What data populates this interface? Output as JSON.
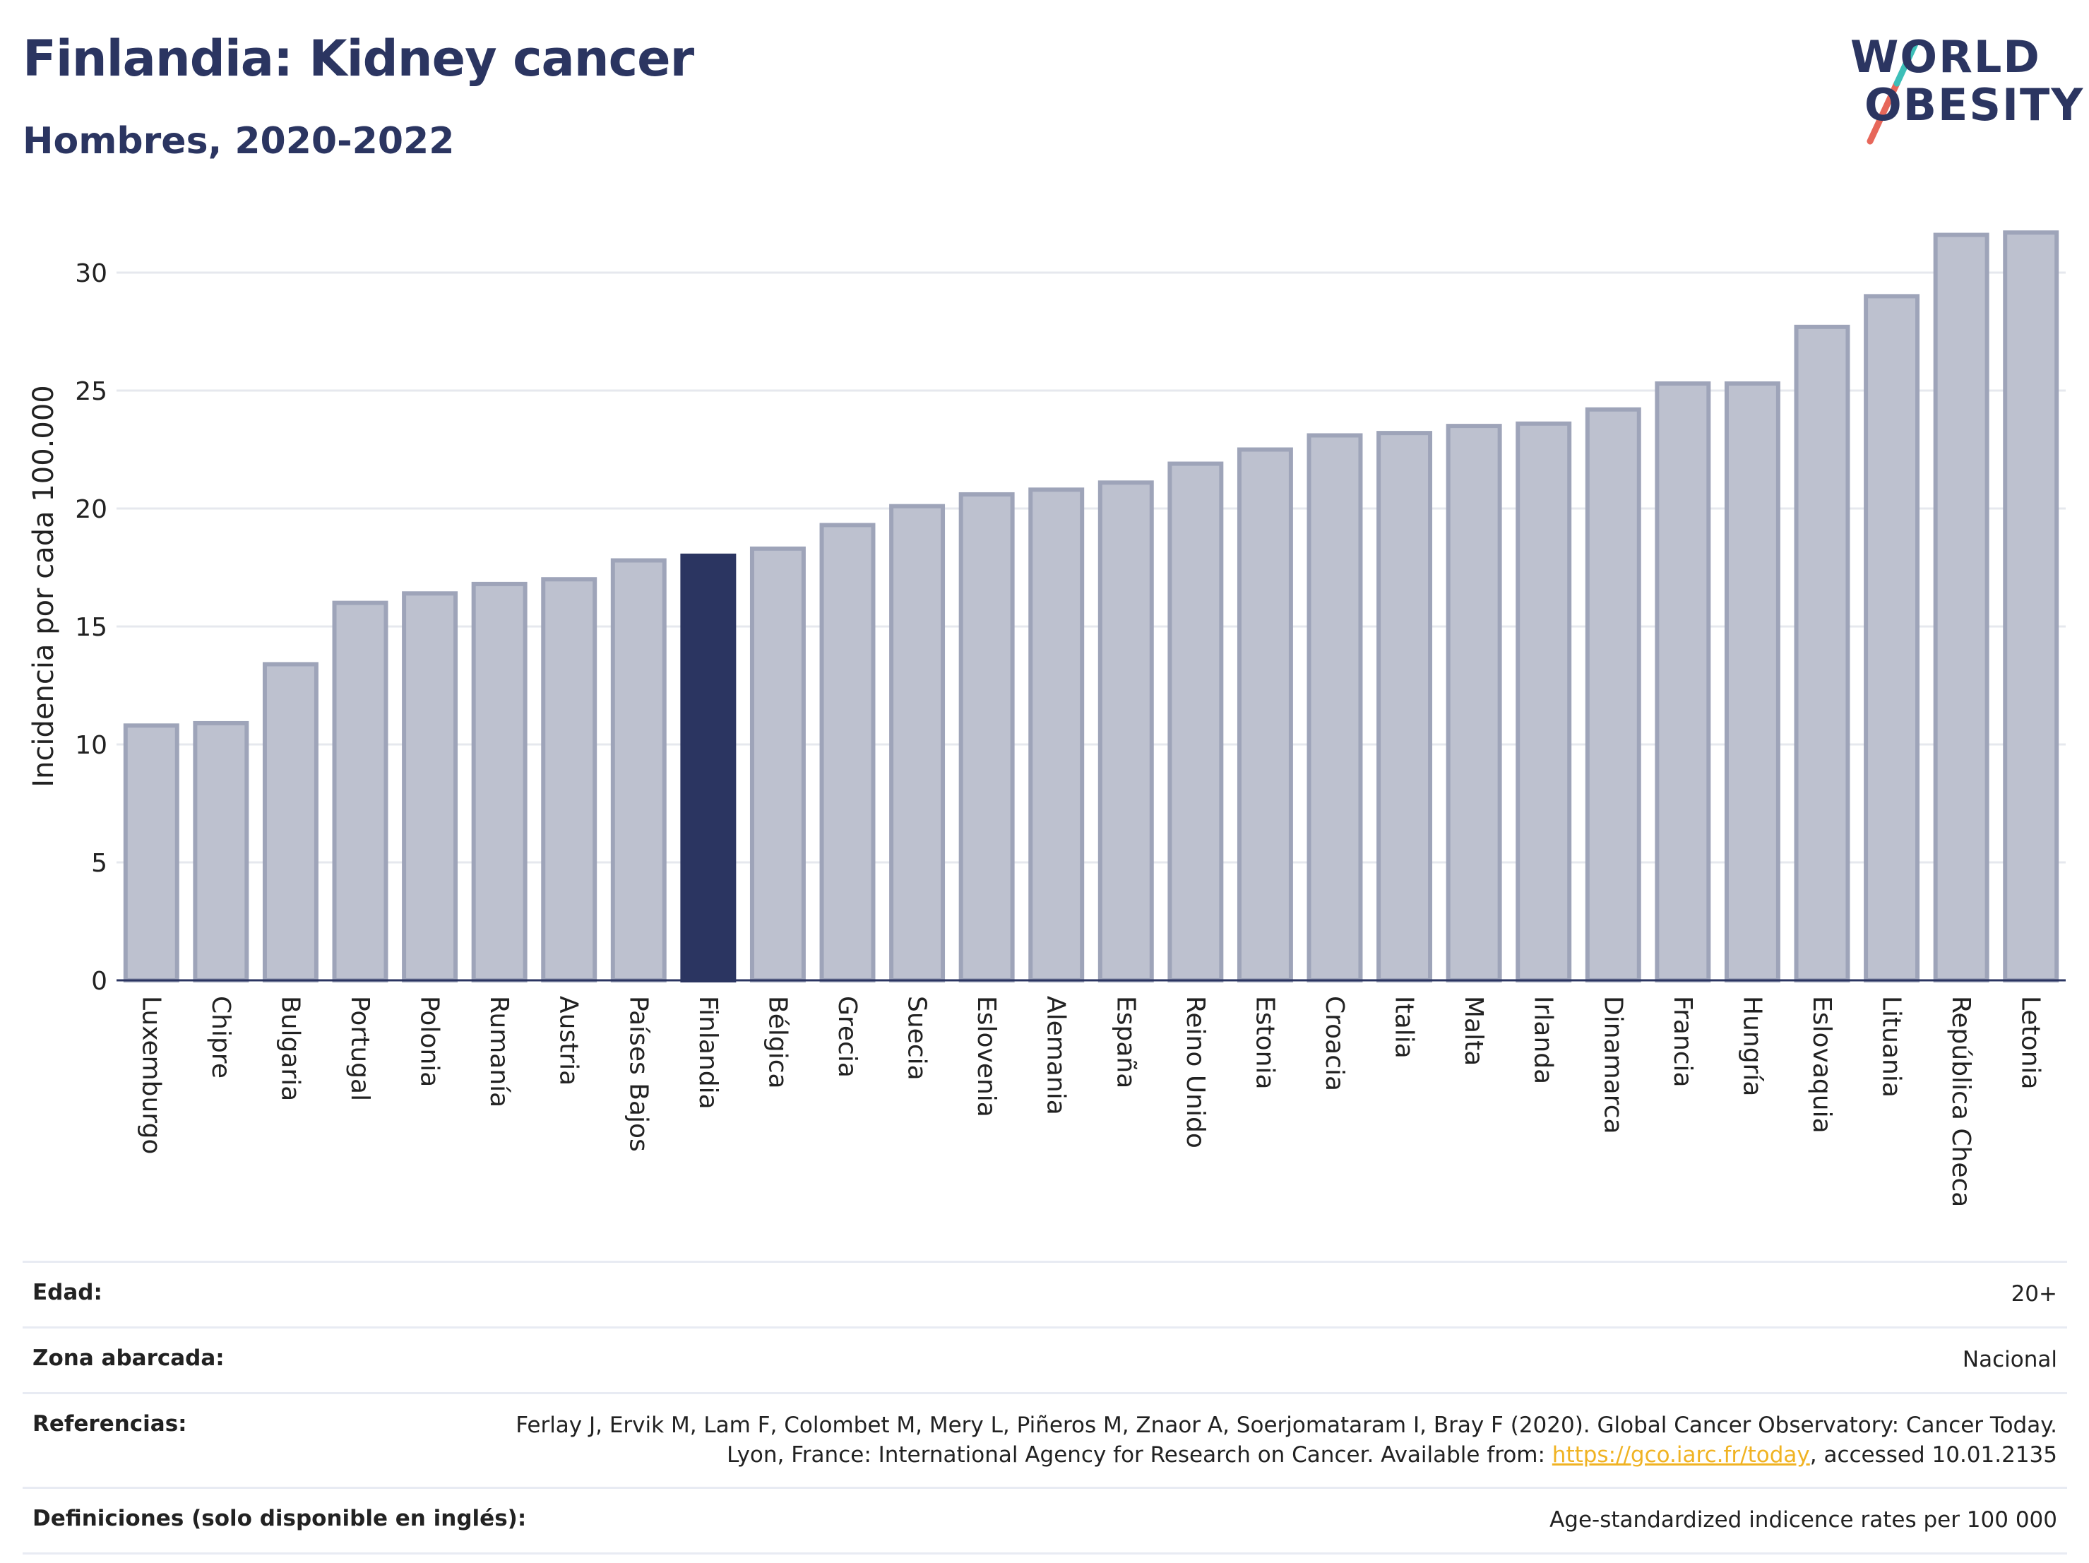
{
  "header": {
    "title": "Finlandia: Kidney cancer",
    "subtitle": "Hombres, 2020-2022",
    "logo_line1": "WORLD",
    "logo_line2": "OBESITY"
  },
  "colors": {
    "bar": "#bdc1cf",
    "bar_stroke": "#9ea4b9",
    "highlight": "#2b3561",
    "grid": "#e6e8ee",
    "logo_teal": "#3dbfb8",
    "logo_coral": "#e7675a"
  },
  "chart_data": {
    "type": "bar",
    "title": "",
    "ylabel": "Incidencia por cada 100.000",
    "xlabel": "",
    "ylim": [
      0,
      32.5
    ],
    "yticks": [
      0,
      5,
      10,
      15,
      20,
      25,
      30
    ],
    "grid": true,
    "highlight": "Finlandia",
    "categories": [
      "Luxemburgo",
      "Chipre",
      "Bulgaria",
      "Portugal",
      "Polonia",
      "Rumanía",
      "Austria",
      "Países Bajos",
      "Finlandia",
      "Bélgica",
      "Grecia",
      "Suecia",
      "Eslovenia",
      "Alemania",
      "España",
      "Reino Unido",
      "Estonia",
      "Croacia",
      "Italia",
      "Malta",
      "Irlanda",
      "Dinamarca",
      "Francia",
      "Hungría",
      "Eslovaquia",
      "Lituania",
      "República Checa",
      "Letonia"
    ],
    "values": [
      10.8,
      10.9,
      13.4,
      16.0,
      16.4,
      16.8,
      17.0,
      17.8,
      18.0,
      18.3,
      19.3,
      20.1,
      20.6,
      20.8,
      21.1,
      21.9,
      22.5,
      23.1,
      23.2,
      23.5,
      23.6,
      24.2,
      25.3,
      25.3,
      27.7,
      29.0,
      31.6,
      31.7
    ]
  },
  "meta": {
    "edad_label": "Edad:",
    "edad_value": "20+",
    "zona_label": "Zona abarcada:",
    "zona_value": "Nacional",
    "ref_label": "Referencias:",
    "ref_text": "Ferlay J, Ervik M, Lam F, Colombet M, Mery L, Piñeros M, Znaor A, Soerjomataram I, Bray F (2020). Global Cancer Observatory: Cancer Today. Lyon, France: International Agency for Research on Cancer. Available from: ",
    "ref_link": "https://gco.iarc.fr/today",
    "ref_suffix": ", accessed 10.01.2135",
    "def_label": "Definiciones (solo disponible en inglés):",
    "def_value": "Age-standardized indicence rates per 100 000"
  }
}
